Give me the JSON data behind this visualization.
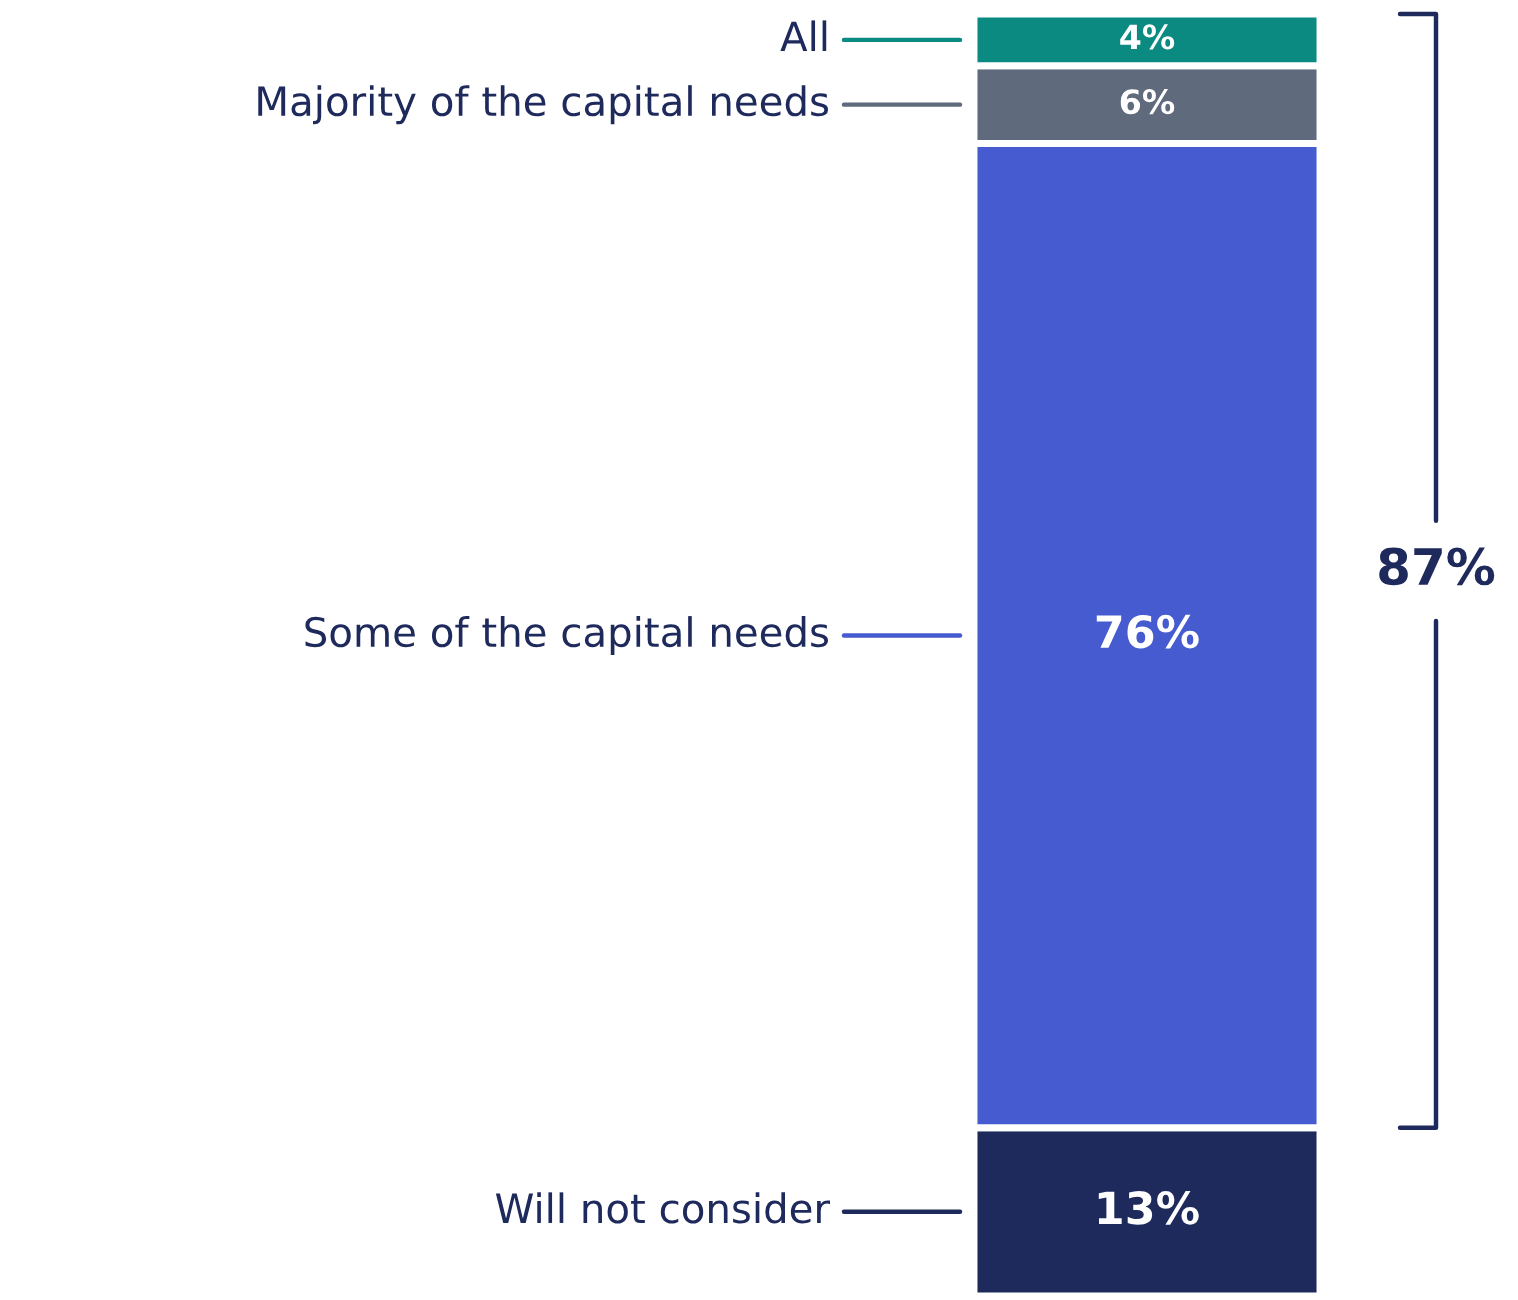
{
  "chart_data": {
    "type": "bar",
    "stacked": true,
    "categories": [
      null
    ],
    "series": [
      {
        "name": "Will not consider",
        "color": "#1f2a5c",
        "values": [
          13
        ],
        "value_labels": [
          "13%"
        ]
      },
      {
        "name": "Some of the capital needs",
        "color": "#455bcf",
        "values": [
          76
        ],
        "value_labels": [
          "76%"
        ]
      },
      {
        "name": "Majority of the capital needs",
        "color": "#5f6b7d",
        "values": [
          6
        ],
        "value_labels": [
          "6%"
        ]
      },
      {
        "name": "All",
        "color": "#0a8a80",
        "values": [
          4
        ],
        "value_labels": [
          "4%"
        ]
      }
    ],
    "legend": "left",
    "annotations": [
      "87%"
    ]
  }
}
